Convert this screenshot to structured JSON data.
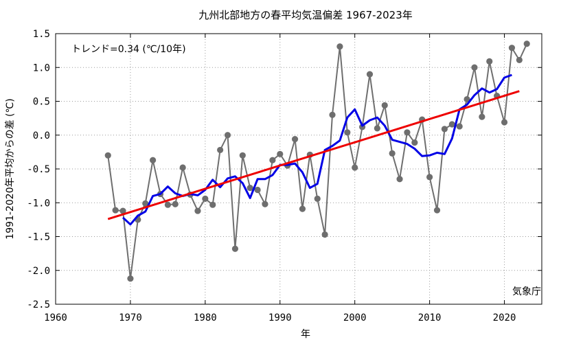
{
  "chart_data": {
    "type": "line",
    "title": "九州北部地方の春平均気温偏差  1967-2023年",
    "xlabel": "年",
    "ylabel": "1991-2020年平均からの差 (℃)",
    "xlim": [
      1960,
      2025
    ],
    "ylim": [
      -2.5,
      1.5
    ],
    "x_ticks": [
      1960,
      1970,
      1980,
      1990,
      2000,
      2010,
      2020
    ],
    "y_ticks": [
      -2.5,
      -2.0,
      -1.5,
      -1.0,
      -0.5,
      0.0,
      0.5,
      1.0,
      1.5
    ],
    "y_tick_labels": [
      "-2.5",
      "-2.0",
      "-1.5",
      "-1.0",
      "-0.5",
      "0.0",
      "0.5",
      "1.0",
      "1.5"
    ],
    "grid": true,
    "annotation": "トレンド=0.34 (℃/10年)",
    "source": "気象庁",
    "colors": {
      "annual": "#6e6e6e",
      "moving_average": "#0000e6",
      "trend": "#ee0000"
    },
    "series": [
      {
        "style": "gray-markers",
        "x": [
          1967,
          1968,
          1969,
          1970,
          1971,
          1972,
          1973,
          1974,
          1975,
          1976,
          1977,
          1978,
          1979,
          1980,
          1981,
          1982,
          1983,
          1984,
          1985,
          1986,
          1987,
          1988,
          1989,
          1990,
          1991,
          1992,
          1993,
          1994,
          1995,
          1996,
          1997,
          1998,
          1999,
          2000,
          2001,
          2002,
          2003,
          2004,
          2005,
          2006,
          2007,
          2008,
          2009,
          2010,
          2011,
          2012,
          2013,
          2014,
          2015,
          2016,
          2017,
          2018,
          2019,
          2020,
          2021,
          2022,
          2023
        ],
        "values": [
          -0.3,
          -1.11,
          -1.12,
          -2.12,
          -1.25,
          -1.01,
          -0.37,
          -0.87,
          -1.03,
          -1.02,
          -0.48,
          -0.88,
          -1.12,
          -0.94,
          -1.03,
          -0.22,
          0.0,
          -1.68,
          -0.3,
          -0.78,
          -0.81,
          -1.02,
          -0.37,
          -0.28,
          -0.45,
          -0.06,
          -1.09,
          -0.29,
          -0.94,
          -1.47,
          0.3,
          1.31,
          0.04,
          -0.48,
          0.12,
          0.9,
          0.1,
          0.44,
          -0.27,
          -0.65,
          0.04,
          -0.11,
          0.23,
          -0.62,
          -1.11,
          0.09,
          0.16,
          0.13,
          0.53,
          1.0,
          0.27,
          1.09,
          0.58,
          0.19,
          1.29,
          1.11,
          1.35
        ]
      },
      {
        "style": "blue-line",
        "x": [
          1969,
          1970,
          1971,
          1972,
          1973,
          1974,
          1975,
          1976,
          1977,
          1978,
          1979,
          1980,
          1981,
          1982,
          1983,
          1984,
          1985,
          1986,
          1987,
          1988,
          1989,
          1990,
          1991,
          1992,
          1993,
          1994,
          1995,
          1996,
          1997,
          1998,
          1999,
          2000,
          2001,
          2002,
          2003,
          2004,
          2005,
          2006,
          2007,
          2008,
          2009,
          2010,
          2011,
          2012,
          2013,
          2014,
          2015,
          2016,
          2017,
          2018,
          2019,
          2020,
          2021
        ],
        "values": [
          -1.22,
          -1.32,
          -1.19,
          -1.13,
          -0.9,
          -0.87,
          -0.76,
          -0.86,
          -0.9,
          -0.87,
          -0.89,
          -0.81,
          -0.66,
          -0.77,
          -0.64,
          -0.61,
          -0.71,
          -0.93,
          -0.65,
          -0.65,
          -0.59,
          -0.44,
          -0.44,
          -0.42,
          -0.55,
          -0.78,
          -0.72,
          -0.22,
          -0.16,
          -0.08,
          0.26,
          0.38,
          0.14,
          0.22,
          0.26,
          0.14,
          -0.07,
          -0.1,
          -0.13,
          -0.2,
          -0.31,
          -0.3,
          -0.26,
          -0.28,
          -0.05,
          0.38,
          0.45,
          0.59,
          0.69,
          0.63,
          0.68,
          0.85,
          0.89
        ]
      },
      {
        "style": "red-trend",
        "x": [
          1967,
          2022
        ],
        "values": [
          -1.24,
          0.65
        ]
      }
    ]
  }
}
